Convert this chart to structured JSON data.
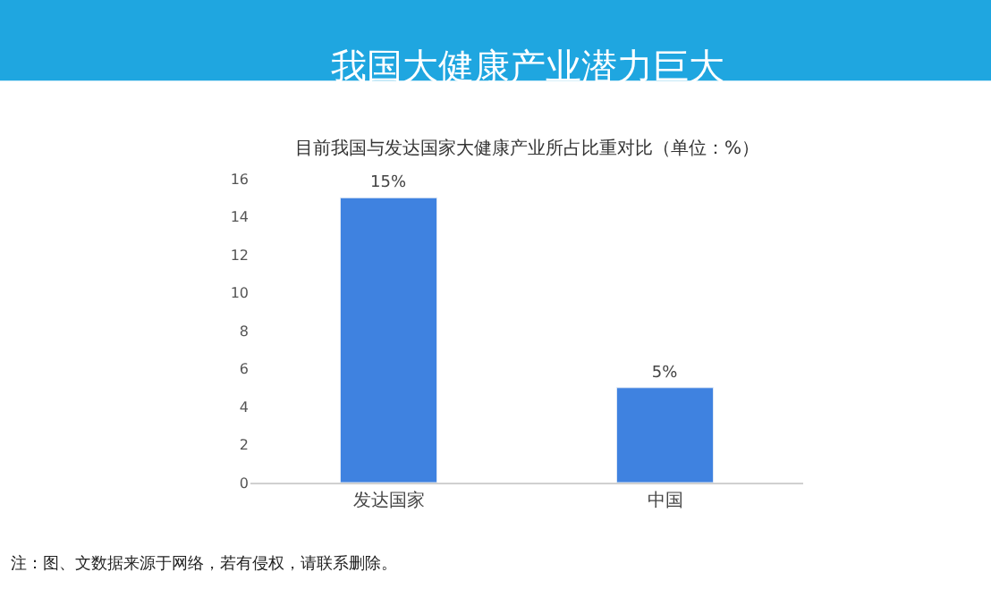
{
  "chart_data": {
    "type": "bar",
    "title": "我国大健康产业潜力巨大",
    "subtitle": "目前我国与发达国家大健康产业所占比重对比（单位：%）",
    "categories": [
      "发达国家",
      "中国"
    ],
    "values": [
      15,
      5
    ],
    "value_labels": [
      "15%",
      "5%"
    ],
    "color": "#3f82e0",
    "ylim": [
      0,
      16
    ],
    "yticks": [
      0,
      2,
      4,
      6,
      8,
      10,
      12,
      14,
      16
    ],
    "legend": false,
    "annotations": [
      "注：图、文数据来源于网络，若有侵权，请联系删除。"
    ]
  }
}
